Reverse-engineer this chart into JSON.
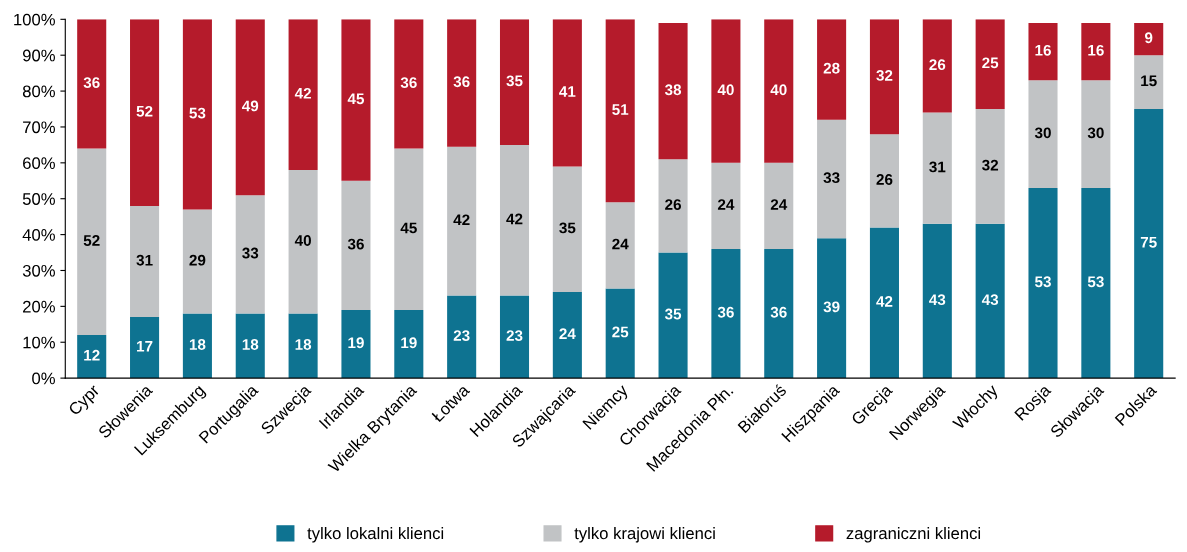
{
  "chart_data": {
    "type": "bar",
    "stacked": true,
    "grid": false,
    "legend": "bottom",
    "categories": [
      "Cypr",
      "Słowenia",
      "Luksemburg",
      "Portugalia",
      "Szwecja",
      "Irlandia",
      "Wielka Brytania",
      "Łotwa",
      "Holandia",
      "Szwajcaria",
      "Niemcy",
      "Chorwacja",
      "Macedonia Płn.",
      "Białoruś",
      "Hiszpania",
      "Grecja",
      "Norwegia",
      "Włochy",
      "Rosja",
      "Słowacja",
      "Polska"
    ],
    "series": [
      {
        "name": "tylko lokalni klienci",
        "color": "#0e7391",
        "values": [
          12,
          17,
          18,
          18,
          18,
          19,
          19,
          23,
          23,
          24,
          25,
          35,
          36,
          36,
          39,
          42,
          43,
          43,
          53,
          53,
          75
        ],
        "value_labels": [
          "12",
          "17",
          "18",
          "18",
          "18",
          "19",
          "19",
          "23",
          "23",
          "24",
          "25",
          "35",
          "36",
          "36",
          "39",
          "42",
          "43",
          "43",
          "53",
          "53",
          "75"
        ]
      },
      {
        "name": "tylko krajowi klienci",
        "color": "#c1c3c5",
        "values": [
          52,
          31,
          29,
          33,
          40,
          36,
          45,
          41.5,
          42,
          35,
          24,
          26,
          24,
          24,
          33,
          26,
          31,
          32,
          30,
          30,
          15
        ],
        "value_labels": [
          "52",
          "31",
          "29",
          "33",
          "40",
          "36",
          "45",
          "42",
          "42",
          "35",
          "24",
          "26",
          "24",
          "24",
          "33",
          "26",
          "31",
          "32",
          "30",
          "30",
          "15"
        ]
      },
      {
        "name": "zagraniczni klienci",
        "color": "#b51b2b",
        "values": [
          36,
          52,
          53,
          49,
          42,
          45,
          36,
          35.5,
          35,
          41,
          51,
          38,
          40,
          40,
          28,
          32,
          26,
          25,
          16,
          16,
          9
        ],
        "value_labels": [
          "36",
          "52",
          "53",
          "49",
          "42",
          "45",
          "36",
          "36",
          "35",
          "41",
          "51",
          "38",
          "40",
          "40",
          "28",
          "32",
          "26",
          "25",
          "16",
          "16",
          "9"
        ]
      }
    ],
    "ylim": [
      0,
      100
    ],
    "yticks": [
      {
        "value": 0,
        "label": "0%"
      },
      {
        "value": 10,
        "label": "10%"
      },
      {
        "value": 20,
        "label": "20%"
      },
      {
        "value": 30,
        "label": "30%"
      },
      {
        "value": 40,
        "label": "40%"
      },
      {
        "value": 50,
        "label": "50%"
      },
      {
        "value": 60,
        "label": "60%"
      },
      {
        "value": 70,
        "label": "70%"
      },
      {
        "value": 80,
        "label": "80%"
      },
      {
        "value": 90,
        "label": "90%"
      },
      {
        "value": 100,
        "label": "100%"
      }
    ]
  }
}
